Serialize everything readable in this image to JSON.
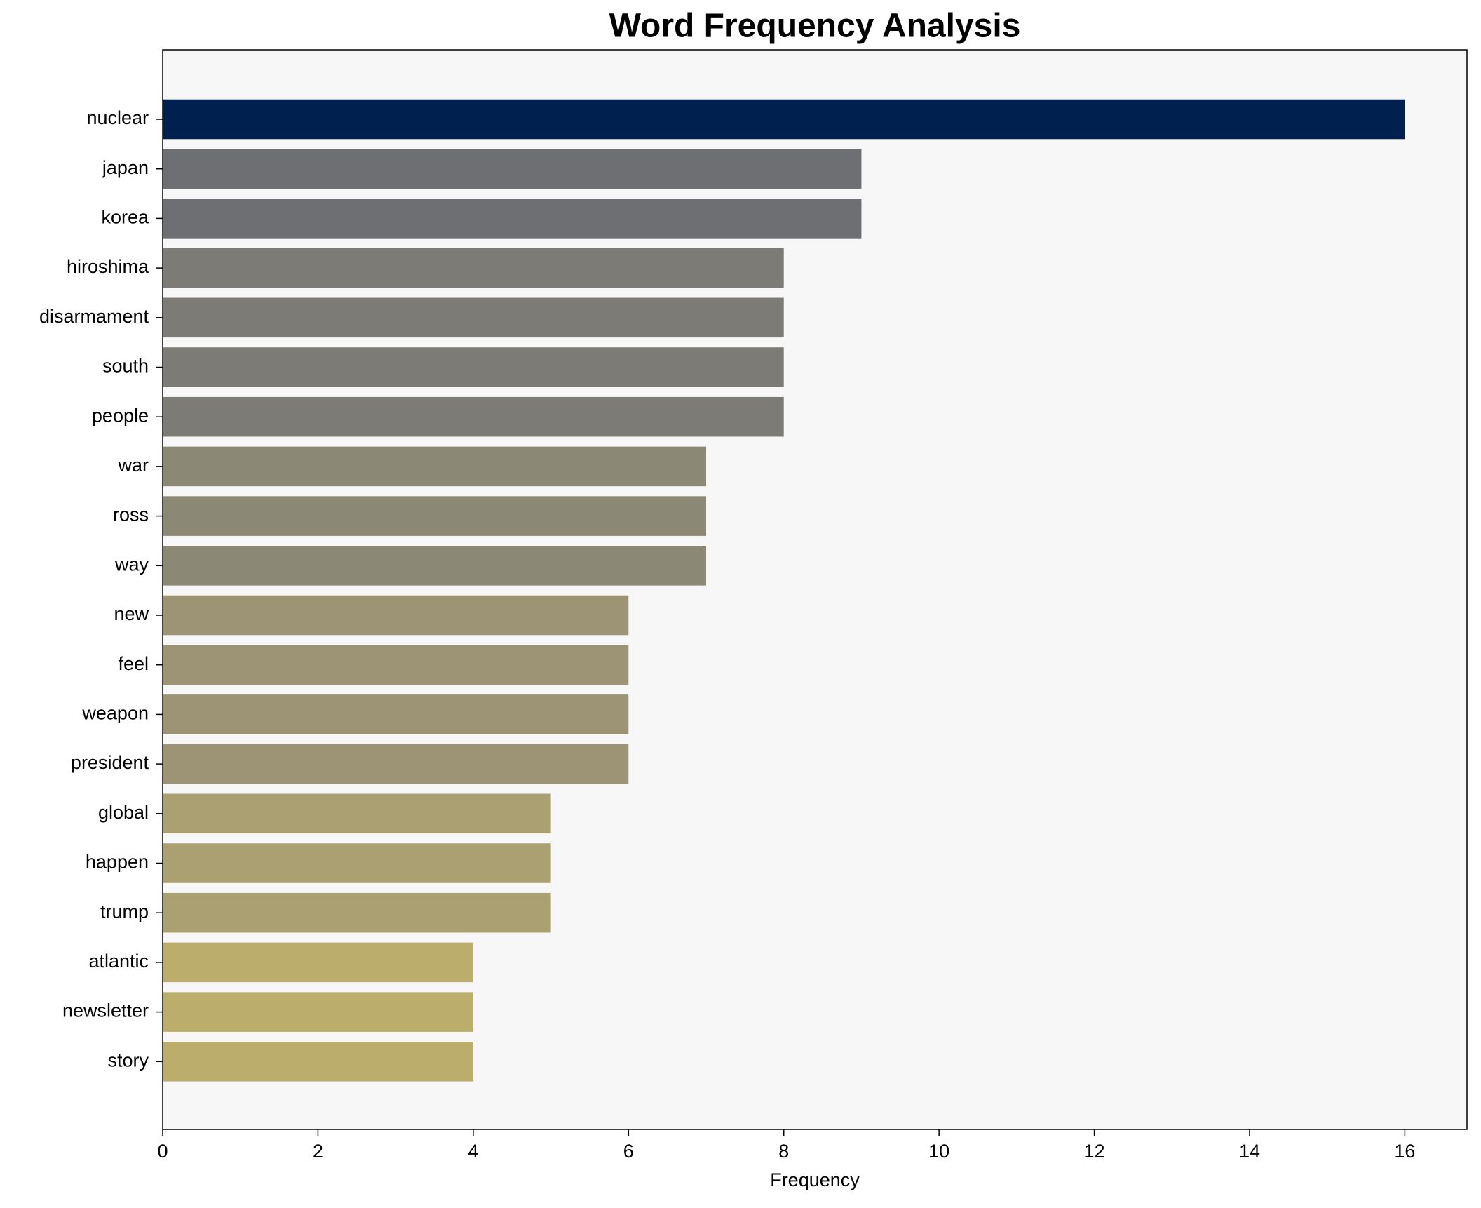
{
  "chart_data": {
    "type": "barh",
    "title": "Word Frequency Analysis",
    "xlabel": "Frequency",
    "categories": [
      "nuclear",
      "japan",
      "korea",
      "hiroshima",
      "disarmament",
      "south",
      "people",
      "war",
      "ross",
      "way",
      "new",
      "feel",
      "weapon",
      "president",
      "global",
      "happen",
      "trump",
      "atlantic",
      "newsletter",
      "story"
    ],
    "values": [
      16,
      9,
      9,
      8,
      8,
      8,
      8,
      7,
      7,
      7,
      6,
      6,
      6,
      6,
      5,
      5,
      5,
      4,
      4,
      4
    ],
    "colors": [
      "#002050",
      "#6e6f73",
      "#6e6f73",
      "#7c7b76",
      "#7c7b76",
      "#7c7b76",
      "#7c7b76",
      "#8c8876",
      "#8c8876",
      "#8c8876",
      "#9c9474",
      "#9c9474",
      "#9c9474",
      "#9c9474",
      "#aba071",
      "#aba071",
      "#aba071",
      "#bbae6d",
      "#bbae6d",
      "#bbae6d"
    ],
    "xlim": [
      0,
      16.8
    ],
    "xticks": [
      0,
      2,
      4,
      6,
      8,
      10,
      12,
      14,
      16
    ]
  }
}
